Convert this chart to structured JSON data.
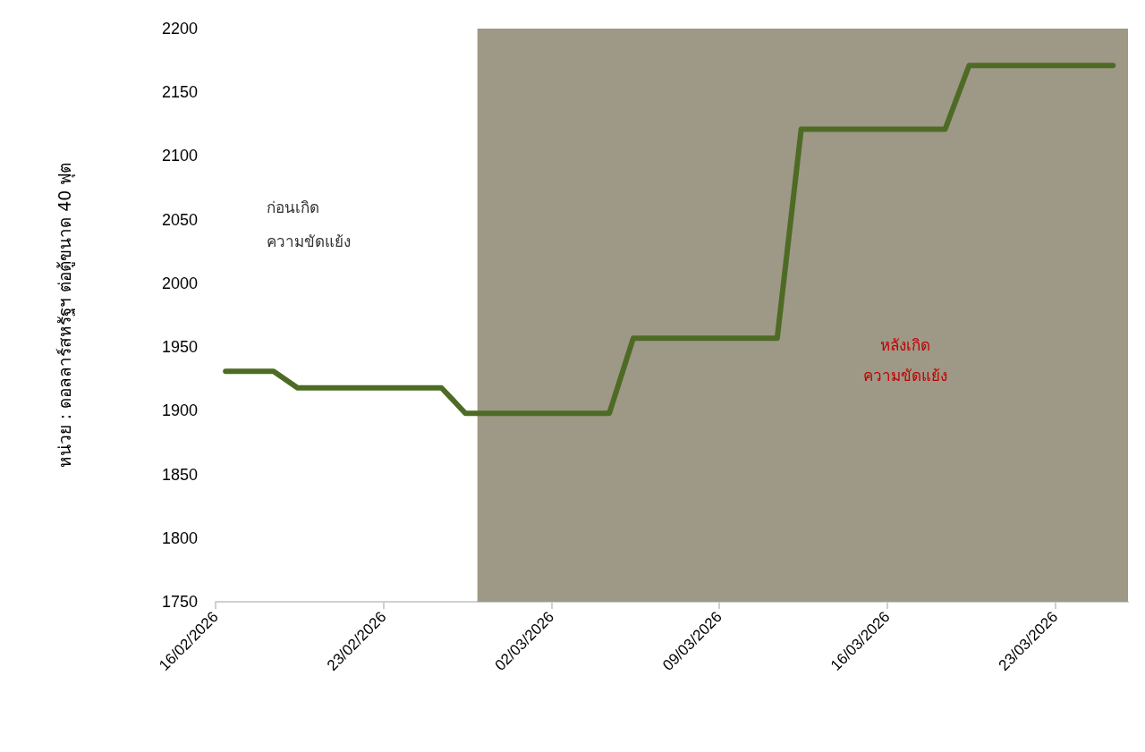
{
  "chart_data": {
    "type": "line",
    "ylabel": "หน่วย : ดอลลาร์สหรัฐฯ ต่อตู้ขนาด 40 ฟุต",
    "x": [
      "2026-02-16T10:00",
      "2026-02-18T10:00",
      "2026-02-19T10:00",
      "2026-02-25T10:00",
      "2026-02-26T10:00",
      "2026-03-04T10:00",
      "2026-03-05T10:00",
      "2026-03-11T10:00",
      "2026-03-12T10:00",
      "2026-03-18T10:00",
      "2026-03-19T10:00",
      "2026-03-25T10:00"
    ],
    "series": [
      {
        "color": "#4e6b25",
        "values": [
          1931,
          1931,
          1918,
          1918,
          1898,
          1898,
          1957,
          1957,
          2121,
          2121,
          2171,
          2171
        ]
      }
    ],
    "xlim": [
      "2026-02-16T00:00",
      "2026-03-26T01:00"
    ],
    "xticks": [
      {
        "value": "2026-02-16",
        "label": "16/02/2026"
      },
      {
        "value": "2026-02-23",
        "label": "23/02/2026"
      },
      {
        "value": "2026-03-02",
        "label": "02/03/2026"
      },
      {
        "value": "2026-03-09",
        "label": "09/03/2026"
      },
      {
        "value": "2026-03-16",
        "label": "16/03/2026"
      },
      {
        "value": "2026-03-23",
        "label": "23/03/2026"
      }
    ],
    "ylim": [
      1750,
      2200
    ],
    "yticks": [
      1750,
      1800,
      1850,
      1900,
      1950,
      2000,
      2050,
      2100,
      2150,
      2200
    ],
    "bands": [
      {
        "axis": "x",
        "from": "2026-02-26T22:00",
        "to": "2026-03-26T01:00",
        "label": "หลังเกิด\nความขัดแย้ง",
        "color": "#9e9886"
      }
    ],
    "annotations": [
      "ก่อนเกิด\nความขัดแย้ง"
    ],
    "grid": false,
    "marker": "none",
    "line_style": "solid"
  }
}
